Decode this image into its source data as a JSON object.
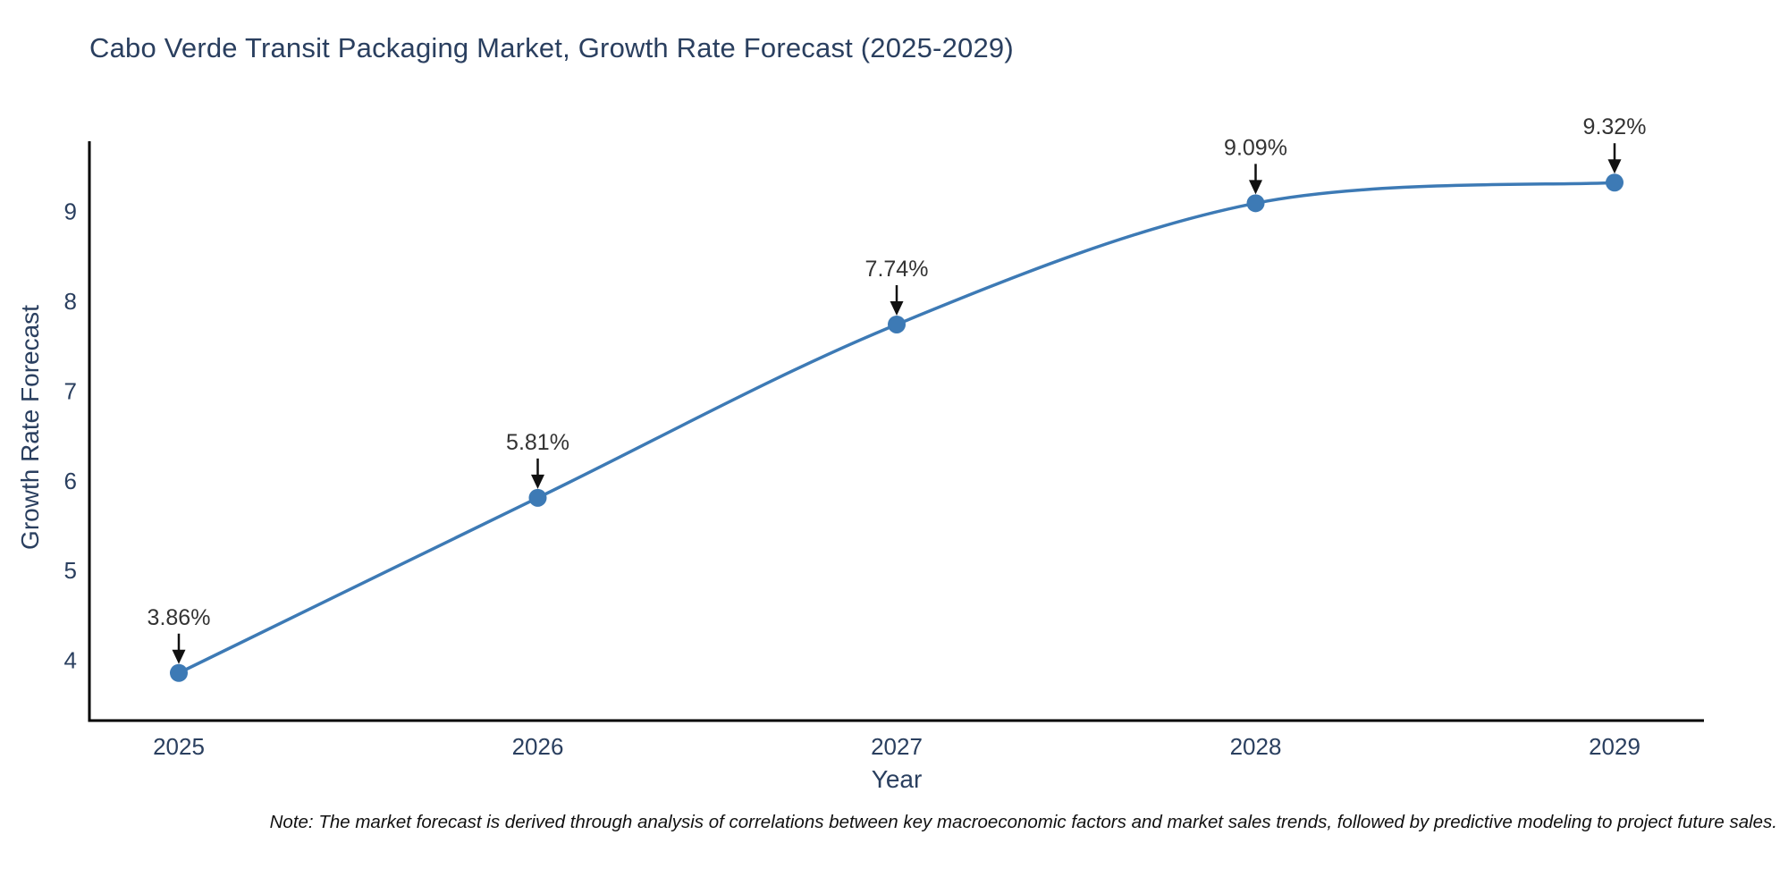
{
  "chart_data": {
    "type": "line",
    "title": "Cabo Verde Transit Packaging Market, Growth Rate Forecast (2025-2029)",
    "xlabel": "Year",
    "ylabel": "Growth Rate Forecast",
    "categories": [
      "2025",
      "2026",
      "2027",
      "2028",
      "2029"
    ],
    "values": [
      3.86,
      5.81,
      7.74,
      9.09,
      9.32
    ],
    "point_labels": [
      "3.86%",
      "5.81%",
      "7.74%",
      "9.09%",
      "9.32%"
    ],
    "yticks": [
      4,
      5,
      6,
      7,
      8,
      9
    ],
    "ylim": [
      3.33,
      9.78
    ],
    "curve": "spline",
    "grid": false,
    "legend_position": "none",
    "line_color": "#3d7ab5",
    "marker_color": "#3d7ab5",
    "axis_color": "#000000",
    "text_color": "#2a3f5f",
    "annotation_text_color": "#333333",
    "arrow_color": "#111111",
    "background_color": "#ffffff"
  },
  "note": {
    "text": "Note: The market forecast is derived through analysis of correlations between key macroeconomic factors and market sales trends, followed by predictive modeling to project future sales."
  }
}
